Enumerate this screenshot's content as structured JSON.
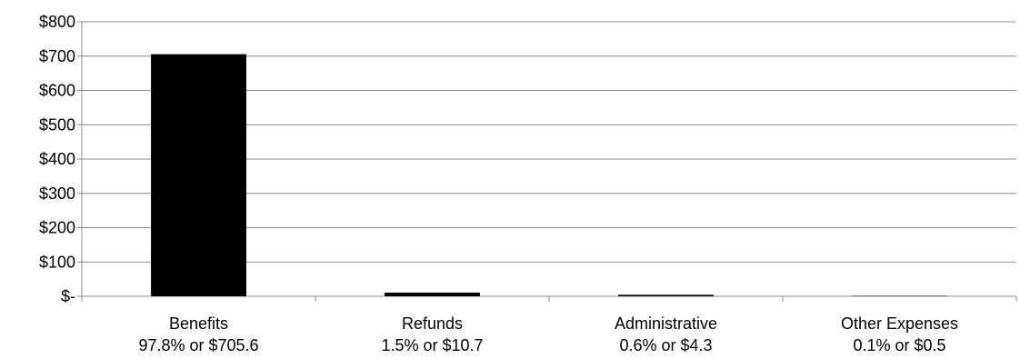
{
  "chart_data": {
    "type": "bar",
    "categories": [
      {
        "name": "Benefits",
        "detail": "97.8% or $705.6"
      },
      {
        "name": "Refunds",
        "detail": "1.5% or $10.7"
      },
      {
        "name": "Administrative",
        "detail": "0.6% or $4.3"
      },
      {
        "name": "Other Expenses",
        "detail": "0.1% or $0.5"
      }
    ],
    "values": [
      705.6,
      10.7,
      4.3,
      0.5
    ],
    "ylim": [
      0,
      800
    ],
    "yticks": [
      {
        "value": 0,
        "label": "$-"
      },
      {
        "value": 100,
        "label": "$100"
      },
      {
        "value": 200,
        "label": "$200"
      },
      {
        "value": 300,
        "label": "$300"
      },
      {
        "value": 400,
        "label": "$400"
      },
      {
        "value": 500,
        "label": "$500"
      },
      {
        "value": 600,
        "label": "$600"
      },
      {
        "value": 700,
        "label": "$700"
      },
      {
        "value": 800,
        "label": "$800"
      }
    ],
    "grid": true,
    "bar_color": "#000000",
    "grid_color": "#8c8c8c",
    "title": "",
    "xlabel": "",
    "ylabel": ""
  }
}
